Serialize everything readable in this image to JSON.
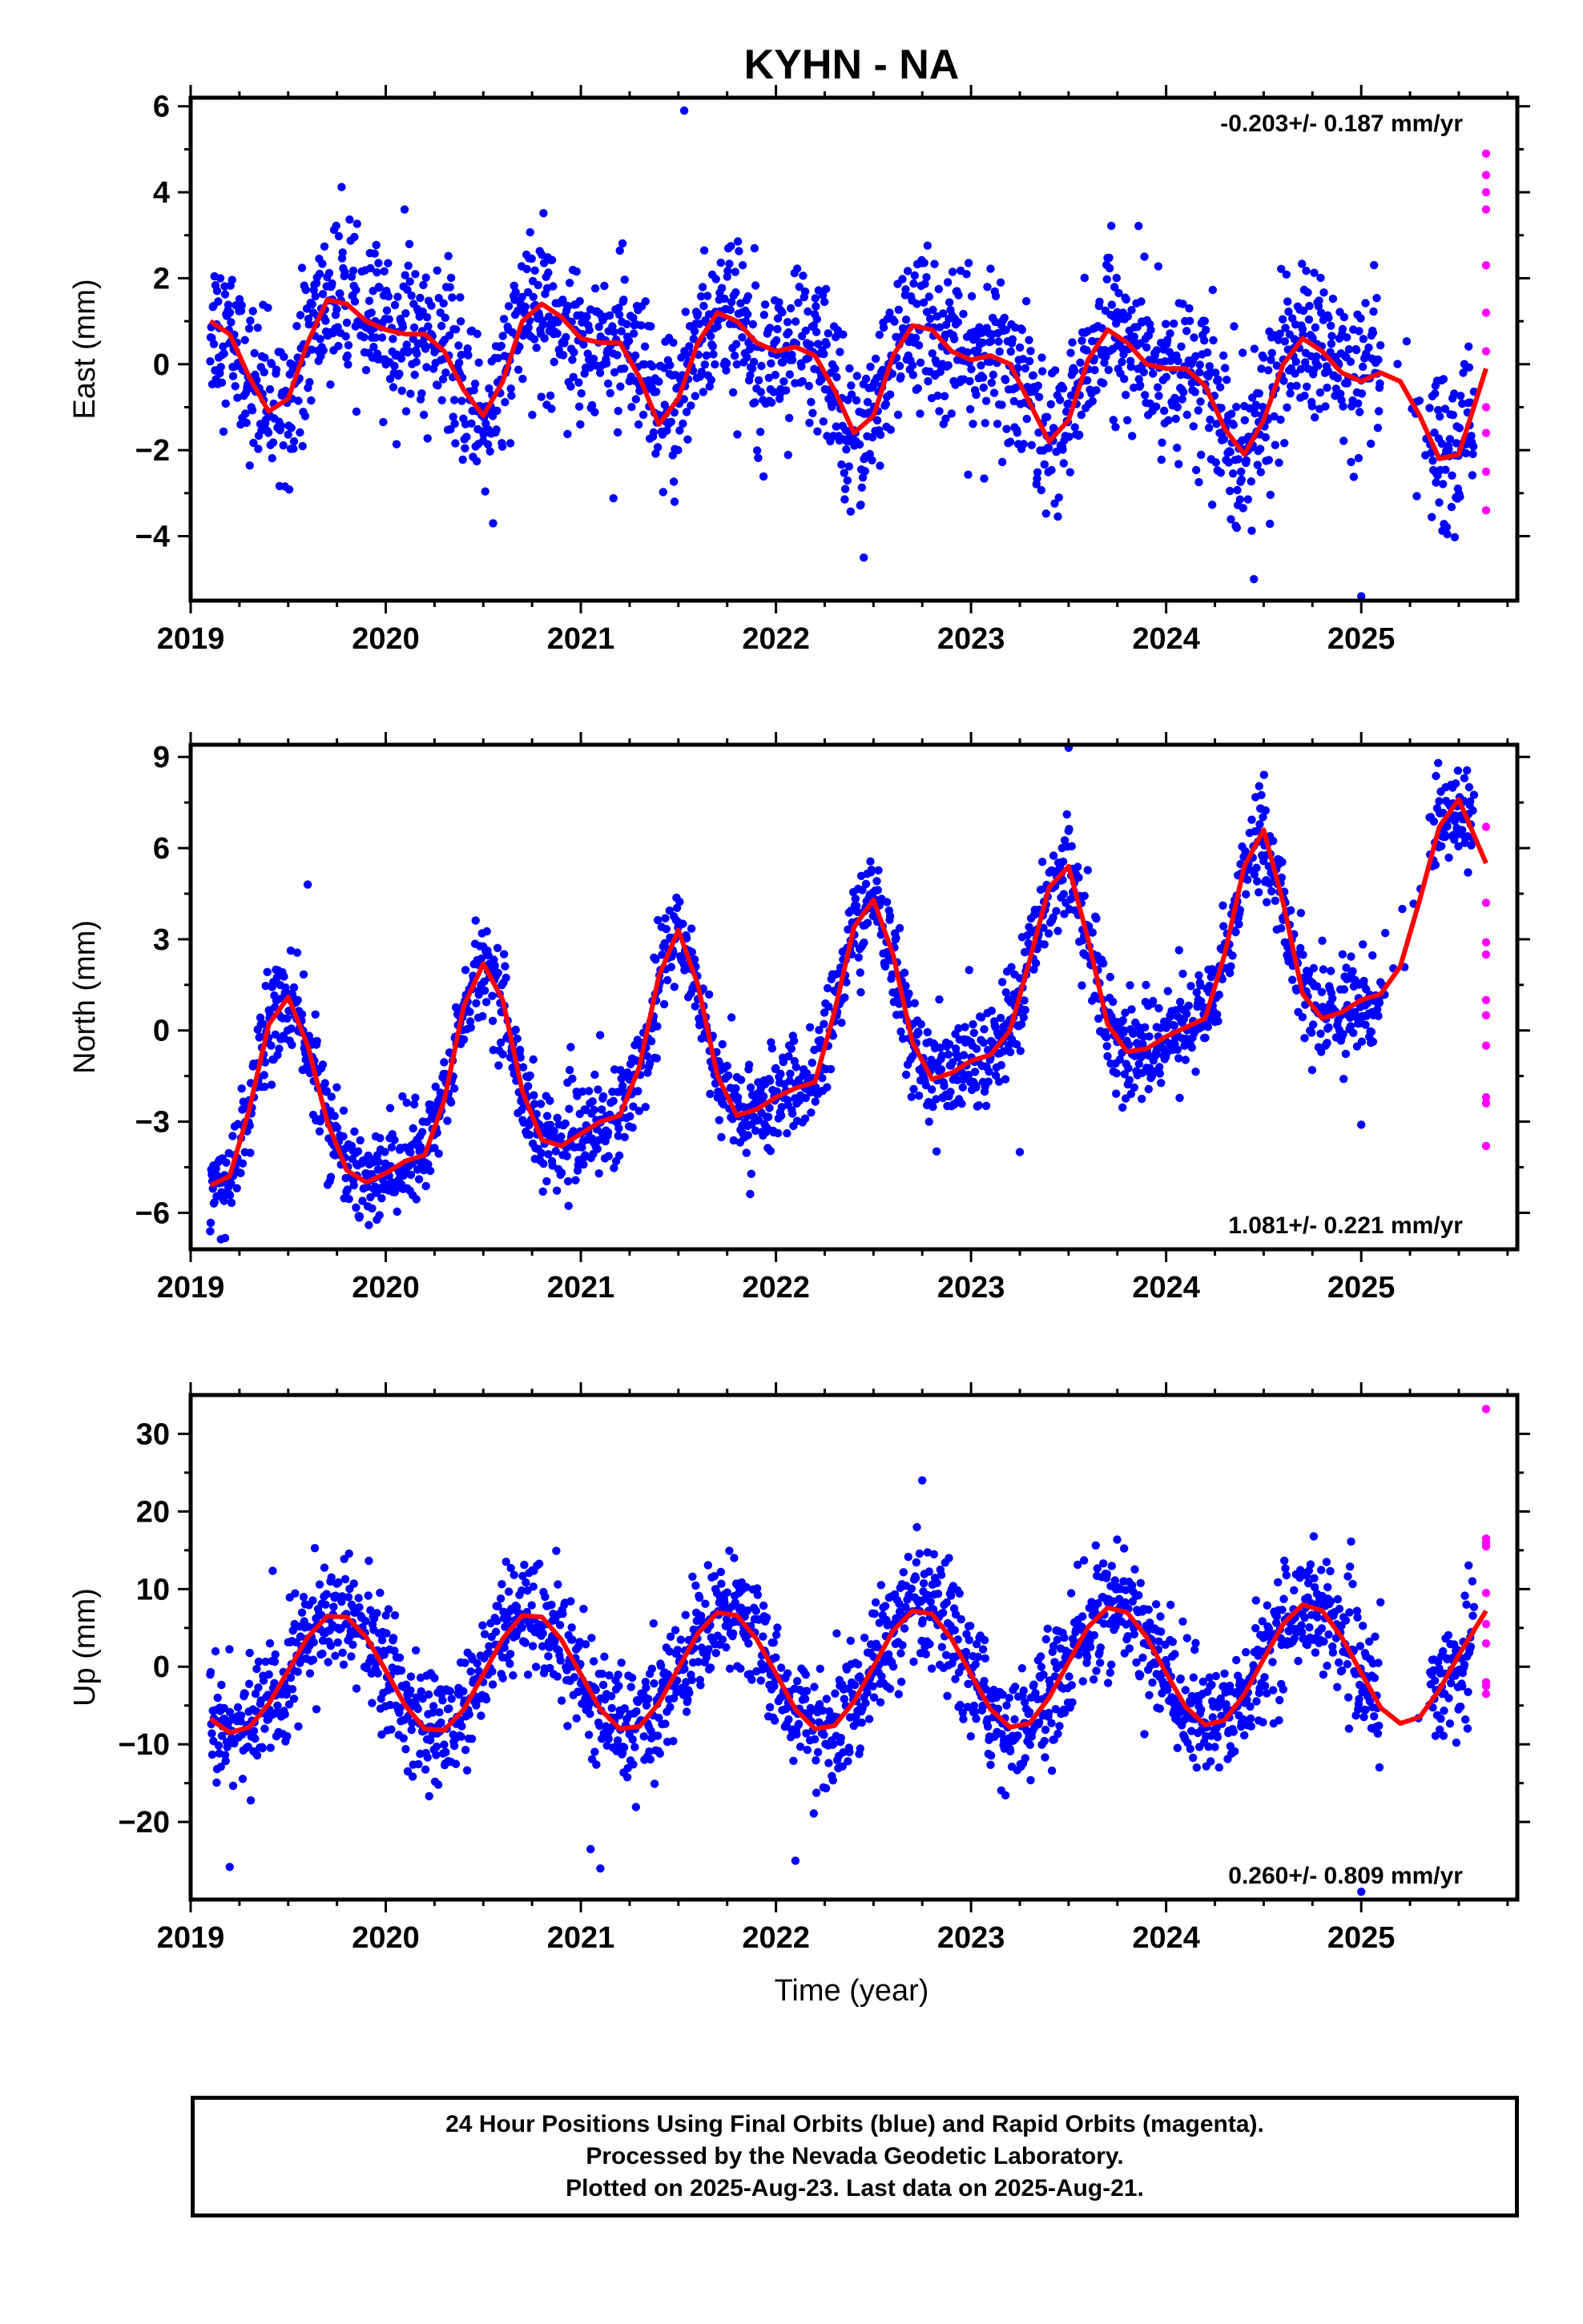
{
  "chart_data": {
    "title": "KYHN - NA",
    "type": "scatter",
    "xlabel": "Time (year)",
    "x_ticks": [
      2019,
      2020,
      2021,
      2022,
      2023,
      2024,
      2025
    ],
    "xlim": [
      2019.0,
      2025.8
    ],
    "data_start": 2019.1,
    "last_final": 2025.58,
    "rapid_start": 2025.6,
    "last_data": 2025.64,
    "series_colors": {
      "final": "#0000ff",
      "rapid": "#ff00ff",
      "model": "#ff0000"
    },
    "panels": [
      {
        "ylabel": "East (mm)",
        "ylim": [
          -5.5,
          6.2
        ],
        "y_ticks": [
          6,
          4,
          2,
          0,
          -2,
          -4
        ],
        "rate_text": "-0.203+/- 0.187 mm/yr",
        "rate_position": "top-right",
        "rate": -0.203,
        "offset": 0.85,
        "annual": [
          0.75,
          4.8
        ],
        "semiannual": [
          0.35,
          0.6
        ],
        "noise": 0.9,
        "model_points": [
          [
            2019.1,
            1.0
          ],
          [
            2019.2,
            0.7
          ],
          [
            2019.3,
            -0.3
          ],
          [
            2019.4,
            -1.1
          ],
          [
            2019.5,
            -0.8
          ],
          [
            2019.6,
            0.5
          ],
          [
            2019.7,
            1.5
          ],
          [
            2019.8,
            1.4
          ],
          [
            2019.9,
            1.0
          ],
          [
            2020.0,
            0.8
          ],
          [
            2020.1,
            0.7
          ],
          [
            2020.2,
            0.7
          ],
          [
            2020.3,
            0.3
          ],
          [
            2020.4,
            -0.6
          ],
          [
            2020.5,
            -1.2
          ],
          [
            2020.6,
            -0.4
          ],
          [
            2020.7,
            1.0
          ],
          [
            2020.8,
            1.4
          ],
          [
            2020.9,
            1.1
          ],
          [
            2021.0,
            0.6
          ],
          [
            2021.1,
            0.5
          ],
          [
            2021.2,
            0.5
          ],
          [
            2021.3,
            -0.3
          ],
          [
            2021.4,
            -1.4
          ],
          [
            2021.5,
            -0.8
          ],
          [
            2021.6,
            0.5
          ],
          [
            2021.7,
            1.2
          ],
          [
            2021.8,
            1.0
          ],
          [
            2021.9,
            0.5
          ],
          [
            2022.0,
            0.3
          ],
          [
            2022.1,
            0.4
          ],
          [
            2022.2,
            0.2
          ],
          [
            2022.3,
            -0.6
          ],
          [
            2022.4,
            -1.6
          ],
          [
            2022.5,
            -1.2
          ],
          [
            2022.6,
            0.2
          ],
          [
            2022.7,
            0.9
          ],
          [
            2022.8,
            0.8
          ],
          [
            2022.9,
            0.3
          ],
          [
            2023.0,
            0.1
          ],
          [
            2023.1,
            0.2
          ],
          [
            2023.2,
            0.0
          ],
          [
            2023.3,
            -0.9
          ],
          [
            2023.4,
            -1.8
          ],
          [
            2023.5,
            -1.3
          ],
          [
            2023.6,
            0.1
          ],
          [
            2023.7,
            0.8
          ],
          [
            2023.8,
            0.5
          ],
          [
            2023.9,
            0.0
          ],
          [
            2024.0,
            -0.1
          ],
          [
            2024.1,
            -0.1
          ],
          [
            2024.2,
            -0.5
          ],
          [
            2024.3,
            -1.5
          ],
          [
            2024.4,
            -2.1
          ],
          [
            2024.5,
            -1.3
          ],
          [
            2024.6,
            0.0
          ],
          [
            2024.7,
            0.6
          ],
          [
            2024.8,
            0.3
          ],
          [
            2024.9,
            -0.2
          ],
          [
            2025.0,
            -0.4
          ],
          [
            2025.1,
            -0.2
          ],
          [
            2025.2,
            -0.4
          ],
          [
            2025.3,
            -1.2
          ],
          [
            2025.4,
            -2.2
          ],
          [
            2025.5,
            -2.1
          ],
          [
            2025.64,
            -0.1
          ]
        ],
        "outliers": [
          [
            2021.53,
            5.9
          ],
          [
            2025.0,
            -5.4
          ],
          [
            2024.45,
            -5.0
          ],
          [
            2022.45,
            -4.5
          ],
          [
            2021.48,
            -3.2
          ],
          [
            2020.55,
            -3.7
          ]
        ],
        "rapid_values": [
          4.9,
          4.4,
          4.0,
          3.6,
          2.3,
          1.2,
          0.3,
          -1.0,
          -1.6,
          -2.5,
          -3.4
        ]
      },
      {
        "ylabel": "North (mm)",
        "ylim": [
          -7.2,
          9.4
        ],
        "y_ticks": [
          9,
          6,
          3,
          0,
          -3,
          -6
        ],
        "rate_text": "1.081+/- 0.221 mm/yr",
        "rate_position": "bottom-right",
        "rate": 1.081,
        "offset": -1.35,
        "annual": [
          3.1,
          1.9
        ],
        "semiannual": [
          0.8,
          0.0
        ],
        "noise": 0.8,
        "model_points": [
          [
            2019.1,
            -5.1
          ],
          [
            2019.2,
            -4.8
          ],
          [
            2019.3,
            -2.6
          ],
          [
            2019.4,
            0.2
          ],
          [
            2019.5,
            1.1
          ],
          [
            2019.6,
            -0.5
          ],
          [
            2019.7,
            -3.0
          ],
          [
            2019.8,
            -4.6
          ],
          [
            2019.9,
            -5.0
          ],
          [
            2020.0,
            -4.7
          ],
          [
            2020.1,
            -4.3
          ],
          [
            2020.2,
            -4.1
          ],
          [
            2020.3,
            -2.3
          ],
          [
            2020.4,
            0.8
          ],
          [
            2020.5,
            2.2
          ],
          [
            2020.6,
            1.0
          ],
          [
            2020.7,
            -2.0
          ],
          [
            2020.8,
            -3.6
          ],
          [
            2020.9,
            -3.8
          ],
          [
            2021.0,
            -3.4
          ],
          [
            2021.1,
            -3.0
          ],
          [
            2021.2,
            -2.8
          ],
          [
            2021.3,
            -1.2
          ],
          [
            2021.4,
            1.8
          ],
          [
            2021.5,
            3.3
          ],
          [
            2021.6,
            1.5
          ],
          [
            2021.7,
            -1.5
          ],
          [
            2021.8,
            -2.8
          ],
          [
            2021.9,
            -2.6
          ],
          [
            2022.0,
            -2.2
          ],
          [
            2022.1,
            -1.9
          ],
          [
            2022.2,
            -1.7
          ],
          [
            2022.3,
            0.6
          ],
          [
            2022.4,
            3.4
          ],
          [
            2022.5,
            4.3
          ],
          [
            2022.6,
            2.5
          ],
          [
            2022.7,
            -0.4
          ],
          [
            2022.8,
            -1.6
          ],
          [
            2022.9,
            -1.4
          ],
          [
            2023.0,
            -1.0
          ],
          [
            2023.1,
            -0.8
          ],
          [
            2023.2,
            0.0
          ],
          [
            2023.3,
            2.3
          ],
          [
            2023.4,
            4.7
          ],
          [
            2023.5,
            5.4
          ],
          [
            2023.6,
            3.0
          ],
          [
            2023.7,
            0.2
          ],
          [
            2023.8,
            -0.7
          ],
          [
            2023.9,
            -0.6
          ],
          [
            2024.0,
            -0.2
          ],
          [
            2024.1,
            0.1
          ],
          [
            2024.2,
            0.4
          ],
          [
            2024.3,
            2.5
          ],
          [
            2024.4,
            5.4
          ],
          [
            2024.5,
            6.6
          ],
          [
            2024.6,
            4.2
          ],
          [
            2024.7,
            1.2
          ],
          [
            2024.8,
            0.4
          ],
          [
            2024.9,
            0.6
          ],
          [
            2025.0,
            1.0
          ],
          [
            2025.1,
            1.2
          ],
          [
            2025.2,
            2.1
          ],
          [
            2025.3,
            4.3
          ],
          [
            2025.4,
            6.7
          ],
          [
            2025.5,
            7.6
          ],
          [
            2025.64,
            5.5
          ]
        ],
        "outliers": [
          [
            2023.5,
            9.3
          ],
          [
            2019.6,
            4.8
          ],
          [
            2025.0,
            -3.1
          ],
          [
            2023.25,
            -4.0
          ]
        ],
        "rapid_values": [
          6.7,
          4.2,
          2.9,
          2.5,
          1.0,
          0.5,
          -0.5,
          -2.2,
          -2.4,
          -3.8
        ]
      },
      {
        "ylabel": "Up (mm)",
        "ylim": [
          -30,
          35
        ],
        "y_ticks": [
          30,
          20,
          10,
          0,
          -10,
          -20
        ],
        "rate_text": "0.260+/- 0.809 mm/yr",
        "rate_position": "bottom-right",
        "rate": 0.26,
        "offset": -0.6,
        "annual": [
          7.7,
          5.1
        ],
        "semiannual": [
          0.0,
          0.0
        ],
        "noise": 3.8,
        "model_points": [
          [
            2019.1,
            -6.7
          ],
          [
            2019.2,
            -8.5
          ],
          [
            2019.3,
            -7.8
          ],
          [
            2019.4,
            -4.8
          ],
          [
            2019.5,
            -0.5
          ],
          [
            2019.6,
            3.8
          ],
          [
            2019.7,
            6.5
          ],
          [
            2019.8,
            6.4
          ],
          [
            2019.9,
            3.8
          ],
          [
            2020.0,
            -0.5
          ],
          [
            2020.1,
            -5.0
          ],
          [
            2020.2,
            -8.0
          ],
          [
            2020.3,
            -8.2
          ],
          [
            2020.4,
            -5.5
          ],
          [
            2020.5,
            -1.0
          ],
          [
            2020.6,
            3.6
          ],
          [
            2020.7,
            6.6
          ],
          [
            2020.8,
            6.4
          ],
          [
            2020.9,
            3.5
          ],
          [
            2021.0,
            -1.0
          ],
          [
            2021.1,
            -5.5
          ],
          [
            2021.2,
            -8.0
          ],
          [
            2021.3,
            -7.7
          ],
          [
            2021.4,
            -4.7
          ],
          [
            2021.5,
            -0.2
          ],
          [
            2021.6,
            4.3
          ],
          [
            2021.7,
            7.0
          ],
          [
            2021.8,
            6.6
          ],
          [
            2021.9,
            3.6
          ],
          [
            2022.0,
            -0.9
          ],
          [
            2022.1,
            -5.5
          ],
          [
            2022.2,
            -8.0
          ],
          [
            2022.3,
            -7.6
          ],
          [
            2022.4,
            -4.5
          ],
          [
            2022.5,
            0.0
          ],
          [
            2022.6,
            4.6
          ],
          [
            2022.7,
            7.2
          ],
          [
            2022.8,
            6.8
          ],
          [
            2022.9,
            3.6
          ],
          [
            2023.0,
            -1.0
          ],
          [
            2023.1,
            -5.5
          ],
          [
            2023.2,
            -7.8
          ],
          [
            2023.3,
            -7.3
          ],
          [
            2023.4,
            -4.0
          ],
          [
            2023.5,
            0.6
          ],
          [
            2023.6,
            5.1
          ],
          [
            2023.7,
            7.6
          ],
          [
            2023.8,
            7.0
          ],
          [
            2023.9,
            3.8
          ],
          [
            2024.0,
            -0.8
          ],
          [
            2024.1,
            -5.2
          ],
          [
            2024.2,
            -7.5
          ],
          [
            2024.3,
            -6.9
          ],
          [
            2024.4,
            -3.6
          ],
          [
            2024.5,
            1.0
          ],
          [
            2024.6,
            5.5
          ],
          [
            2024.7,
            8.0
          ],
          [
            2024.8,
            7.2
          ],
          [
            2024.9,
            3.8
          ],
          [
            2025.0,
            -0.8
          ],
          [
            2025.1,
            -5.3
          ],
          [
            2025.2,
            -7.3
          ],
          [
            2025.3,
            -6.5
          ],
          [
            2025.4,
            -3.0
          ],
          [
            2025.5,
            1.5
          ],
          [
            2025.64,
            7.2
          ]
        ],
        "outliers": [
          [
            2022.75,
            24.0
          ],
          [
            2021.1,
            -26.0
          ],
          [
            2019.2,
            -25.8
          ],
          [
            2022.1,
            -25.0
          ],
          [
            2025.0,
            -29.0
          ],
          [
            2021.05,
            -23.5
          ]
        ],
        "rapid_values": [
          33.2,
          16.5,
          16.0,
          15.5,
          9.5,
          5.5,
          3.0,
          -2.0,
          -2.5,
          -3.5
        ]
      }
    ]
  },
  "footer": {
    "line1": "24 Hour Positions Using Final Orbits (blue) and Rapid Orbits (magenta).",
    "line2": "Processed by the Nevada Geodetic Laboratory.",
    "line3": "Plotted on 2025-Aug-23. Last data on 2025-Aug-21."
  }
}
